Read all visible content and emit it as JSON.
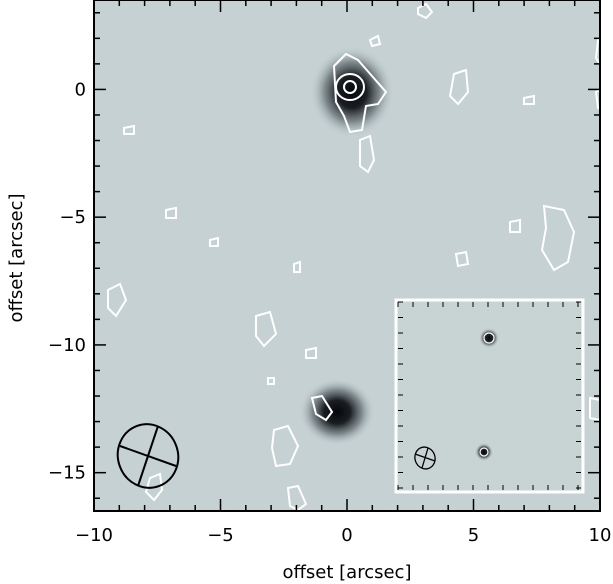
{
  "chart_data": {
    "type": "image",
    "xlabel": "offset [arcsec]",
    "ylabel": "offset [arcsec]",
    "xlim": [
      -10,
      10
    ],
    "ylim": [
      -16.5,
      3.5
    ],
    "xticks": [
      -10,
      -5,
      0,
      5,
      10
    ],
    "yticks": [
      -15,
      -10,
      -5,
      0
    ],
    "xtick_labels": [
      "−10",
      "−5",
      "0",
      "5",
      "10"
    ],
    "ytick_labels": [
      "−15",
      "−10",
      "−5",
      "0"
    ],
    "sources": [
      {
        "x": 0.1,
        "y": 0.1
      },
      {
        "x": -0.6,
        "y": -12.8
      }
    ],
    "beam": {
      "x": -7.9,
      "y": -14.5,
      "major_arcsec": 2.5,
      "minor_arcsec": 2.2
    },
    "inset": {
      "x0": 2.0,
      "x1": 9.5,
      "y0": -16.1,
      "y1": -8.3
    },
    "colors": {
      "background": "#c6d2d4",
      "contour": "#ffffff",
      "source": "#0a0c10"
    }
  }
}
